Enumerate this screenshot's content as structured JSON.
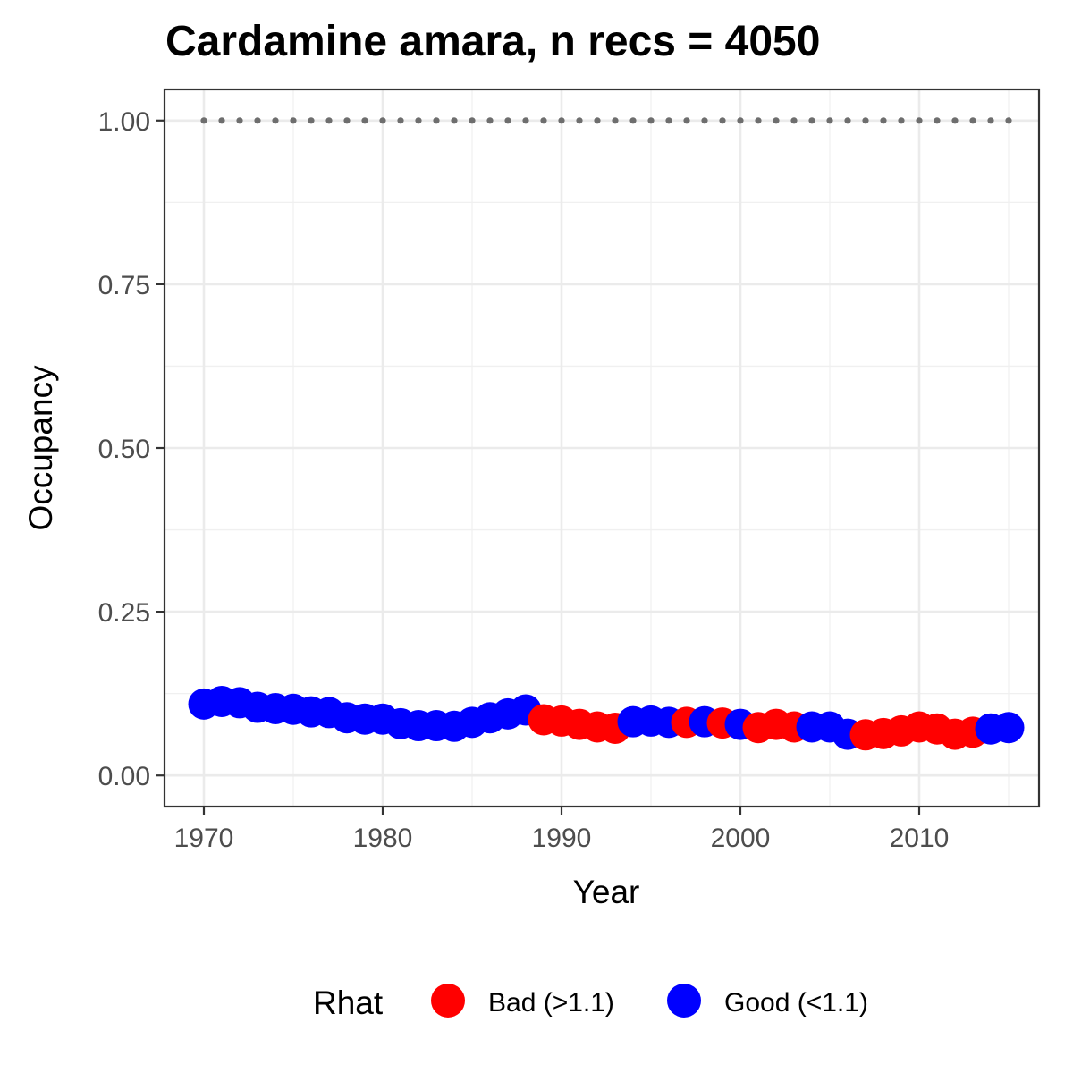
{
  "chart_data": {
    "type": "scatter",
    "title": "Cardamine amara, n recs = 4050",
    "xlabel": "Year",
    "ylabel": "Occupancy",
    "xlim": [
      1967.8,
      2016.7
    ],
    "ylim": [
      -0.0475,
      1.0475
    ],
    "x_ticks": [
      1970,
      1980,
      1990,
      2000,
      2010
    ],
    "x_tick_labels": [
      "1970",
      "1980",
      "1990",
      "2000",
      "2010"
    ],
    "y_ticks": [
      0,
      0.25,
      0.5,
      0.75,
      1
    ],
    "y_tick_labels": [
      "0.00",
      "0.25",
      "0.50",
      "0.75",
      "1.00"
    ],
    "grid": true,
    "legend": {
      "title": "Rhat",
      "position": "bottom",
      "entries": [
        {
          "label": "Bad (>1.1)",
          "color": "#ff0000"
        },
        {
          "label": "Good (<1.1)",
          "color": "#0000ff"
        }
      ]
    },
    "reference_line": {
      "y": 1.0,
      "style": "dotted",
      "color": "#6e6e6e",
      "x": [
        1970,
        2015
      ]
    },
    "series": [
      {
        "name": "Good (<1.1)",
        "color": "#0000ff",
        "x": [
          1970,
          1971,
          1972,
          1973,
          1974,
          1975,
          1976,
          1977,
          1978,
          1979,
          1980,
          1981,
          1982,
          1983,
          1984,
          1985,
          1986,
          1987,
          1988,
          1994,
          1995,
          1996,
          1998,
          2000,
          2004,
          2005,
          2006,
          2014,
          2015
        ],
        "y": [
          0.109,
          0.113,
          0.111,
          0.104,
          0.102,
          0.101,
          0.097,
          0.096,
          0.088,
          0.086,
          0.086,
          0.079,
          0.076,
          0.076,
          0.075,
          0.081,
          0.088,
          0.094,
          0.1,
          0.082,
          0.083,
          0.081,
          0.082,
          0.078,
          0.074,
          0.074,
          0.063,
          0.071,
          0.073
        ]
      },
      {
        "name": "Bad (>1.1)",
        "color": "#ff0000",
        "x": [
          1989,
          1990,
          1991,
          1992,
          1993,
          1997,
          1999,
          2001,
          2002,
          2003,
          2007,
          2008,
          2009,
          2010,
          2011,
          2012,
          2013
        ],
        "y": [
          0.085,
          0.083,
          0.078,
          0.074,
          0.072,
          0.081,
          0.08,
          0.073,
          0.078,
          0.074,
          0.062,
          0.064,
          0.068,
          0.074,
          0.071,
          0.063,
          0.066
        ]
      }
    ]
  }
}
